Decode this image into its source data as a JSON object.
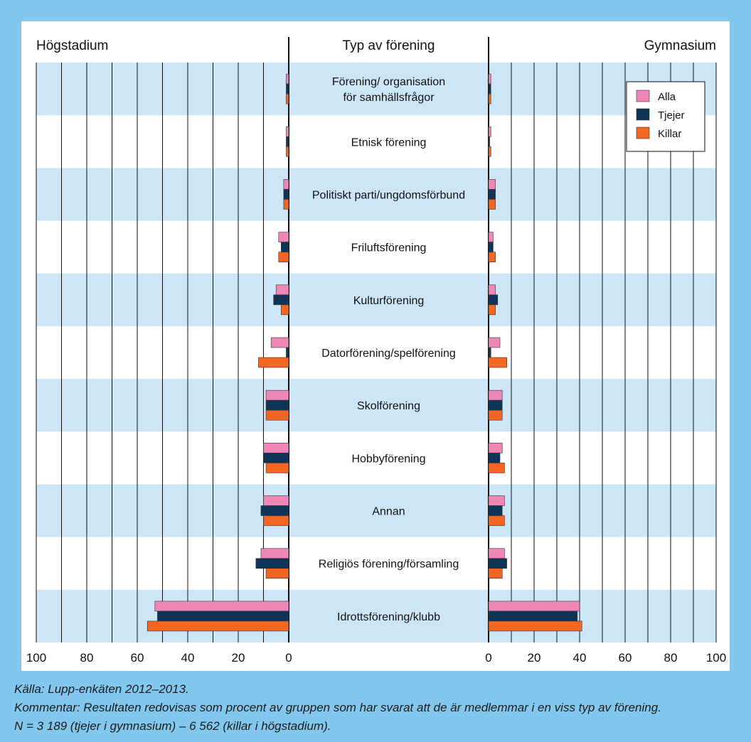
{
  "chart_data": {
    "type": "bar",
    "left_panel_title": "Högstadium",
    "center_title": "Typ av förening",
    "right_panel_title": "Gymnasium",
    "categories": [
      "Förening/ organisation\nför samhällsfrågor",
      "Etnisk förening",
      "Politiskt parti/ungdomsförbund",
      "Friluftsförening",
      "Kulturförening",
      "Datorförening/spelförening",
      "Skolförening",
      "Hobbyförening",
      "Annan",
      "Religiös förening/församling",
      "Idrottsförening/klubb"
    ],
    "left_series": [
      {
        "name": "Alla",
        "color": "#ee87b6",
        "values": [
          1,
          1,
          2,
          4,
          5,
          7,
          9,
          10,
          10,
          11,
          53
        ]
      },
      {
        "name": "Tjejer",
        "color": "#0e3557",
        "values": [
          1,
          1,
          2,
          3,
          6,
          1,
          9,
          10,
          11,
          13,
          52
        ]
      },
      {
        "name": "Killar",
        "color": "#f26522",
        "values": [
          1,
          1,
          2,
          4,
          3,
          12,
          9,
          9,
          10,
          9,
          56
        ]
      }
    ],
    "right_series": [
      {
        "name": "Alla",
        "color": "#ee87b6",
        "values": [
          1,
          1,
          3,
          2,
          3,
          5,
          6,
          6,
          7,
          7,
          40
        ]
      },
      {
        "name": "Tjejer",
        "color": "#0e3557",
        "values": [
          1,
          0.5,
          3,
          2,
          4,
          1,
          6,
          5,
          6,
          8,
          39
        ]
      },
      {
        "name": "Killar",
        "color": "#f26522",
        "values": [
          1,
          1,
          3,
          3,
          3,
          8,
          6,
          7,
          7,
          6,
          41
        ]
      }
    ],
    "left_axis_ticks": [
      "100",
      "80",
      "60",
      "40",
      "20",
      "0"
    ],
    "right_axis_ticks": [
      "0",
      "20",
      "40",
      "60",
      "80",
      "100"
    ],
    "xlim": [
      0,
      100
    ],
    "legend": [
      "Alla",
      "Tjejer",
      "Killar"
    ],
    "legend_position": "top-right",
    "grid": true
  },
  "notes": {
    "source": "Källa: Lupp-enkäten 2012–2013.",
    "comment": "Kommentar: Resultaten redovisas som procent av gruppen som har svarat att de är medlemmar i en viss typ av förening.",
    "n": "N = 3 189 (tjejer i gymnasium) – 6 562 (killar i högstadium)."
  },
  "colors": {
    "background": "#82c8ee",
    "band": "#cde6f7",
    "grid": "#111111"
  }
}
